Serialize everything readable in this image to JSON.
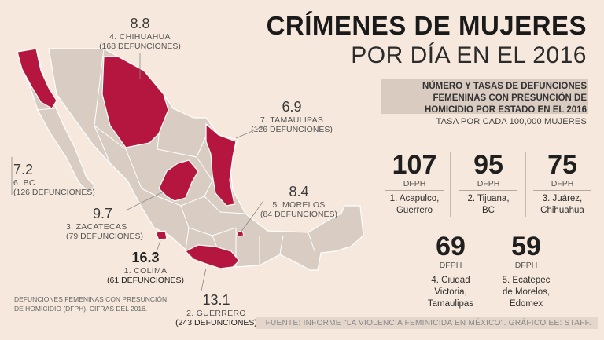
{
  "title": {
    "line1": "CRÍMENES DE MUJERES",
    "line2": "POR DÍA EN EL 2016"
  },
  "subtitle": {
    "line1": "NÚMERO Y TASAS DE DEFUNCIONES",
    "line2": "FEMENINAS CON PRESUNCIÓN DE",
    "line3": "HOMICIDIO POR ESTADO EN EL 2016",
    "note": "TASA POR CADA 100,000 MUJERES"
  },
  "states": [
    {
      "value": "8.8",
      "name": "4. CHIHUAHUA",
      "deaths": "(168 DEFUNCIONES)"
    },
    {
      "value": "6.9",
      "name": "7. TAMAULIPAS",
      "deaths": "(126 DEFUNCIONES)"
    },
    {
      "value": "7.2",
      "name": "6. BC",
      "deaths": "(126 DEFUNCIONES)"
    },
    {
      "value": "8.4",
      "name": "5. MORELOS",
      "deaths": "(84 DEFUNCIONES)"
    },
    {
      "value": "9.7",
      "name": "3. ZACATECAS",
      "deaths": "(79 DEFUNCIONES)"
    },
    {
      "value": "16.3",
      "name": "1. COLIMA",
      "deaths": "(61 DEFUNCIONES)"
    },
    {
      "value": "13.1",
      "name": "2. GUERRERO",
      "deaths": "(243 DEFUNCIONES)"
    }
  ],
  "cities": [
    {
      "value": "107",
      "unit": "DFPH",
      "line1": "1. Acapulco,",
      "line2": "Guerrero",
      "line3": ""
    },
    {
      "value": "95",
      "unit": "DFPH",
      "line1": "2. Tijuana,",
      "line2": "BC",
      "line3": ""
    },
    {
      "value": "75",
      "unit": "DFPH",
      "line1": "3. Juárez,",
      "line2": "Chihuahua",
      "line3": ""
    },
    {
      "value": "69",
      "unit": "DFPH",
      "line1": "4. Ciudad",
      "line2": "Victoria,",
      "line3": "Tamaulipas"
    },
    {
      "value": "59",
      "unit": "DFPH",
      "line1": "5. Ecatepec",
      "line2": "de Morelos,",
      "line3": "Edomex"
    }
  ],
  "footnote": {
    "line1": "DEFUNCIONES FEMENINAS CON PRESUNCIÓN",
    "line2": "DE HOMICIDIO (DFPH). CIFRAS DEL 2016."
  },
  "source": "FUENTE: INFORME \"LA VIOLENCIA FEMINICIDA EN MÉXICO\". GRÁFICO EE: STAFF.",
  "colors": {
    "background": "#f6e8dc",
    "land": "#d8ccc3",
    "highlight": "#b5163f",
    "border": "#ffffff"
  }
}
